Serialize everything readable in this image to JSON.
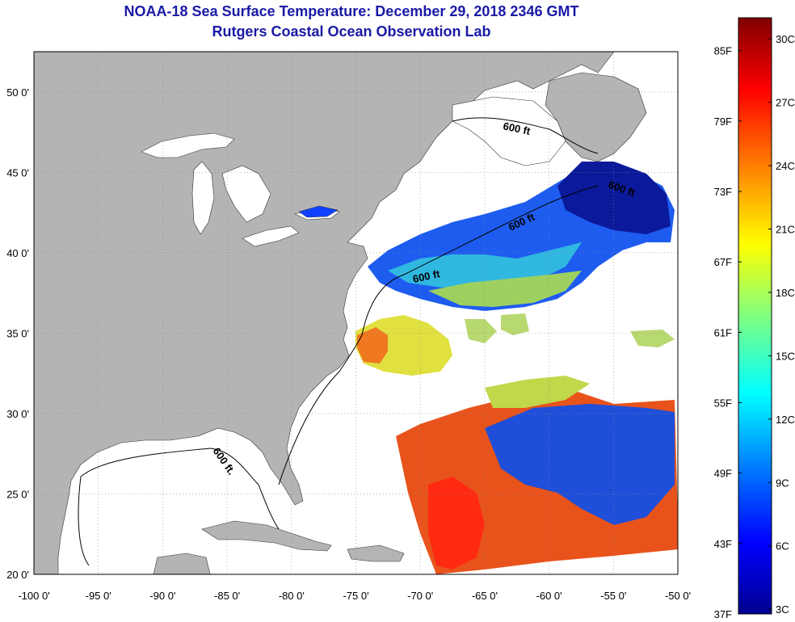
{
  "title": {
    "line1": "NOAA-18 Sea Surface Temperature:  December 29, 2018 2346 GMT",
    "line2": "Rutgers Coastal Ocean Observation Lab"
  },
  "map": {
    "lon_range": [
      -100,
      -50
    ],
    "lat_range": [
      20,
      52.5
    ],
    "lon_ticks": [
      "-100 0'",
      "-95 0'",
      "-90 0'",
      "-85 0'",
      "-80 0'",
      "-75 0'",
      "-70 0'",
      "-65 0'",
      "-60 0'",
      "-55 0'",
      "-50 0'"
    ],
    "lat_ticks": [
      "20 0'",
      "25 0'",
      "30 0'",
      "35 0'",
      "40 0'",
      "45 0'",
      "50 0'"
    ],
    "contour_labels": [
      "600 ft",
      "600 ft",
      "600 ft",
      "600 ft",
      "600 ft."
    ],
    "grid": true,
    "colors": {
      "land": "#b4b4b4",
      "water": "#ffffff"
    }
  },
  "colorbar": {
    "fahrenheit": [
      "37F",
      "43F",
      "49F",
      "55F",
      "61F",
      "67F",
      "73F",
      "79F",
      "85F"
    ],
    "celsius": [
      "3C",
      "6C",
      "9C",
      "12C",
      "15C",
      "18C",
      "21C",
      "24C",
      "27C",
      "30C"
    ],
    "gradient": [
      "#00008f",
      "#0000ff",
      "#0080ff",
      "#00ffff",
      "#80ff80",
      "#ffff00",
      "#ff8000",
      "#ff0000",
      "#800000"
    ]
  }
}
